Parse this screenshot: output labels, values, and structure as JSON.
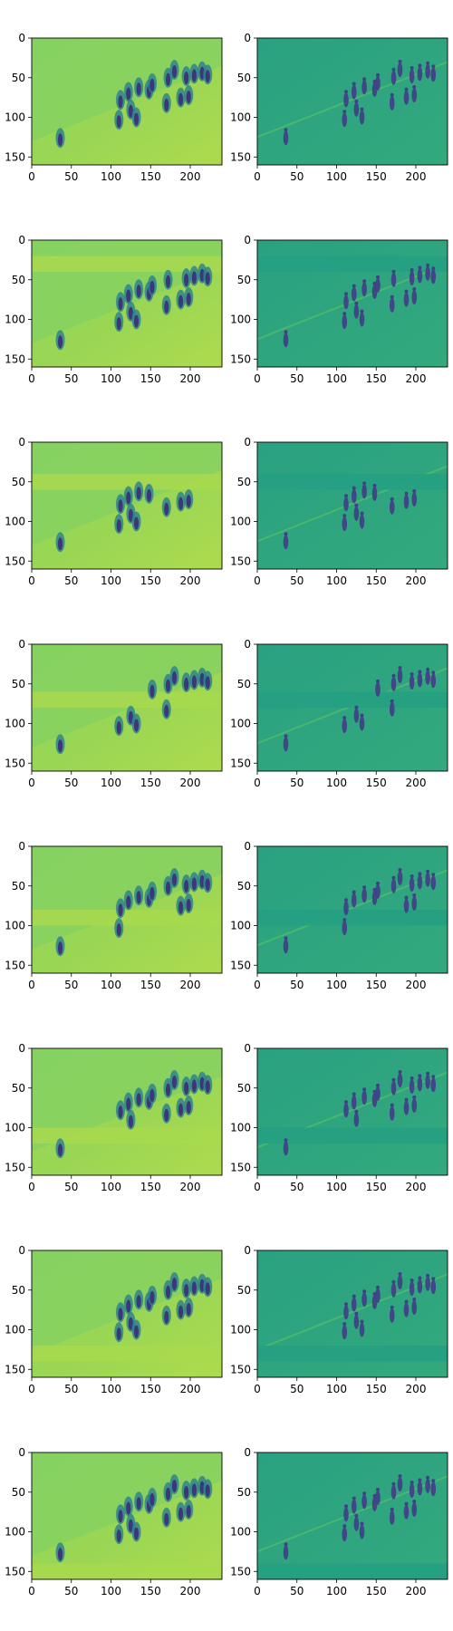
{
  "chart_data": {
    "type": "heatmap",
    "layout": {
      "rows": 8,
      "cols": 2
    },
    "shared_axes": {
      "xlim": [
        0,
        240
      ],
      "ylim": [
        160,
        0
      ],
      "xticks": [
        0,
        50,
        100,
        150,
        200
      ],
      "yticks": [
        0,
        50,
        100,
        150
      ],
      "xtick_labels": [
        "0",
        "50",
        "100",
        "150",
        "200"
      ],
      "ytick_labels": [
        "0",
        "50",
        "100",
        "150"
      ],
      "colormap": "viridis"
    },
    "panels": [
      {
        "row": 1,
        "col": 1,
        "kind": "smooth",
        "band": null
      },
      {
        "row": 1,
        "col": 2,
        "kind": "residual",
        "band": null
      },
      {
        "row": 2,
        "col": 1,
        "kind": "smooth",
        "band": [
          20,
          40
        ]
      },
      {
        "row": 2,
        "col": 2,
        "kind": "residual",
        "band": [
          20,
          40
        ]
      },
      {
        "row": 3,
        "col": 1,
        "kind": "smooth",
        "band": [
          40,
          60
        ]
      },
      {
        "row": 3,
        "col": 2,
        "kind": "residual",
        "band": [
          40,
          60
        ]
      },
      {
        "row": 4,
        "col": 1,
        "kind": "smooth",
        "band": [
          60,
          80
        ]
      },
      {
        "row": 4,
        "col": 2,
        "kind": "residual",
        "band": [
          60,
          80
        ]
      },
      {
        "row": 5,
        "col": 1,
        "kind": "smooth",
        "band": [
          80,
          100
        ]
      },
      {
        "row": 5,
        "col": 2,
        "kind": "residual",
        "band": [
          80,
          100
        ]
      },
      {
        "row": 6,
        "col": 1,
        "kind": "smooth",
        "band": [
          100,
          120
        ]
      },
      {
        "row": 6,
        "col": 2,
        "kind": "residual",
        "band": [
          100,
          120
        ]
      },
      {
        "row": 7,
        "col": 1,
        "kind": "smooth",
        "band": [
          120,
          140
        ]
      },
      {
        "row": 7,
        "col": 2,
        "kind": "residual",
        "band": [
          120,
          140
        ]
      },
      {
        "row": 8,
        "col": 1,
        "kind": "smooth",
        "band": [
          140,
          160
        ]
      },
      {
        "row": 8,
        "col": 2,
        "kind": "residual",
        "band": [
          140,
          160
        ]
      }
    ],
    "figures": [
      [
        36,
        126
      ],
      [
        110,
        103
      ],
      [
        112,
        78
      ],
      [
        122,
        68
      ],
      [
        125,
        90
      ],
      [
        132,
        100
      ],
      [
        135,
        62
      ],
      [
        148,
        65
      ],
      [
        152,
        57
      ],
      [
        170,
        82
      ],
      [
        172,
        50
      ],
      [
        180,
        40
      ],
      [
        188,
        75
      ],
      [
        195,
        48
      ],
      [
        198,
        72
      ],
      [
        205,
        45
      ],
      [
        215,
        42
      ],
      [
        222,
        46
      ]
    ]
  }
}
